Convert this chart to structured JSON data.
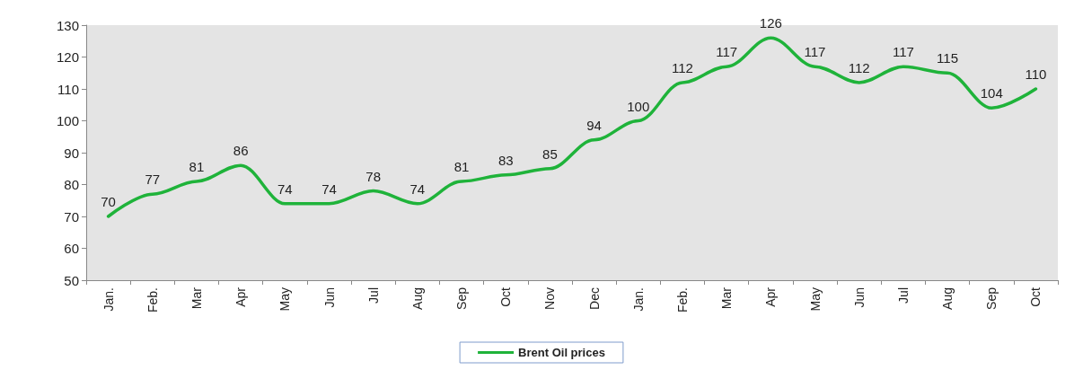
{
  "chart_data": {
    "type": "line",
    "categories": [
      "Jan.",
      "Feb.",
      "Mar",
      "Apr",
      "May",
      "Jun",
      "Jul",
      "Aug",
      "Sep",
      "Oct",
      "Nov",
      "Dec",
      "Jan.",
      "Feb.",
      "Mar",
      "Apr",
      "May",
      "Jun",
      "Jul",
      "Aug",
      "Sep",
      "Oct"
    ],
    "series": [
      {
        "name": "Brent Oil prices",
        "color": "#1fb33a",
        "values": [
          70,
          77,
          81,
          86,
          74,
          74,
          78,
          74,
          81,
          83,
          85,
          94,
          100,
          112,
          117,
          126,
          117,
          112,
          117,
          115,
          104,
          110
        ]
      }
    ],
    "ylim": [
      50,
      130
    ],
    "yticks": [
      50,
      60,
      70,
      80,
      90,
      100,
      110,
      120,
      130
    ],
    "grid": false,
    "legend": "bottom",
    "marker": "none",
    "line_style": "solid",
    "data_labels": true
  }
}
